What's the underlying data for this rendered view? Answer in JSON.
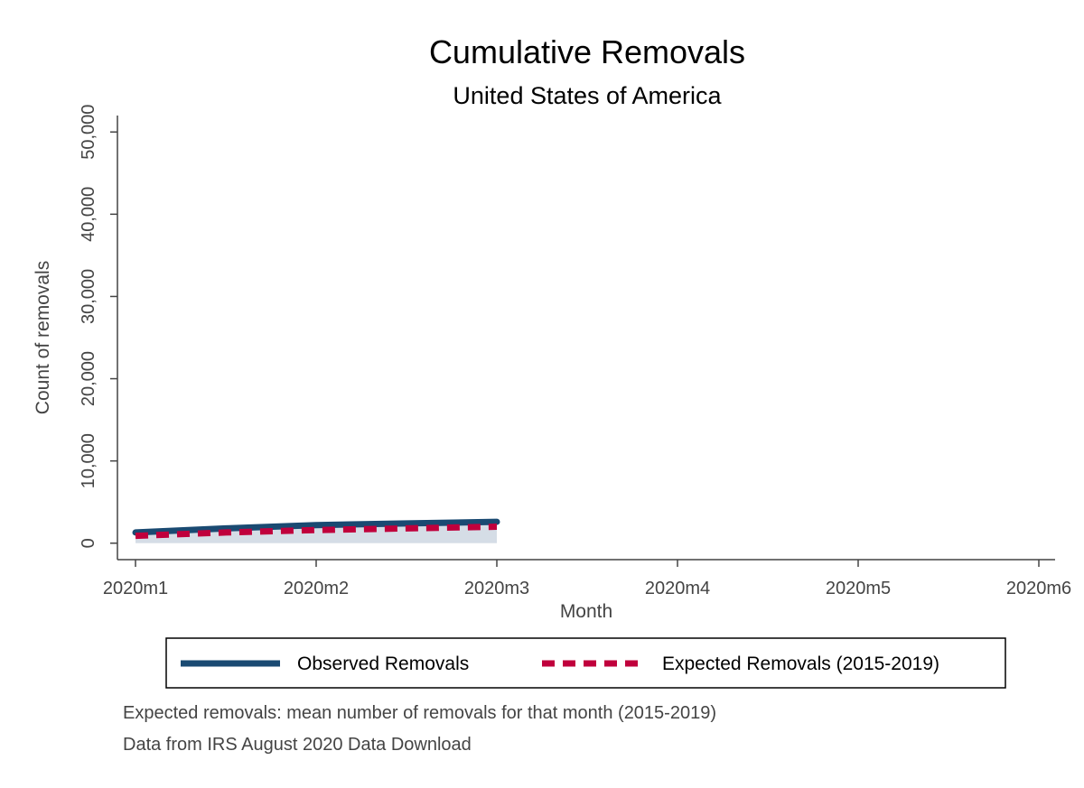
{
  "chart_data": {
    "type": "line",
    "title": "Cumulative Removals",
    "subtitle": "United States of America",
    "xlabel": "Month",
    "ylabel": "Count of removals",
    "categories": [
      "2020m1",
      "2020m2",
      "2020m3",
      "2020m4",
      "2020m5",
      "2020m6"
    ],
    "yticks": [
      0,
      10000,
      20000,
      30000,
      40000,
      50000
    ],
    "ytick_labels": [
      "0",
      "10,000",
      "20,000",
      "30,000",
      "40,000",
      "50,000"
    ],
    "ylim": [
      -2000,
      52000
    ],
    "grid": false,
    "legend_position": "bottom",
    "series": [
      {
        "name": "Observed Removals",
        "style": "solid",
        "color": "#1a4a72",
        "x": [
          1,
          1.5,
          2,
          2.5,
          3
        ],
        "values": [
          1300,
          1800,
          2200,
          2400,
          2600
        ]
      },
      {
        "name": "Expected Removals (2015-2019)",
        "style": "dashed",
        "color": "#c0003c",
        "x": [
          1,
          1.5,
          2,
          2.5,
          3
        ],
        "values": [
          900,
          1300,
          1600,
          1800,
          2000
        ]
      }
    ],
    "band": {
      "color": "#d5dde6",
      "x": [
        1,
        3
      ],
      "lower": [
        0,
        0
      ],
      "upper": [
        1300,
        2600
      ]
    },
    "notes": [
      "Expected removals: mean number of removals for that month (2015-2019)",
      "Data from IRS August 2020 Data Download"
    ]
  }
}
